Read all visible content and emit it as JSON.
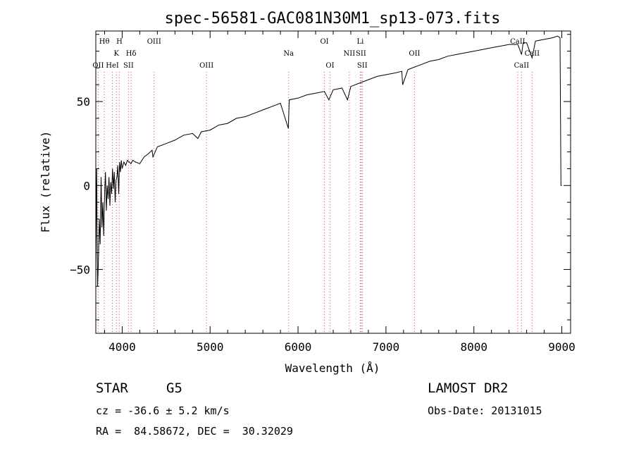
{
  "chart_data": {
    "type": "line",
    "title": "spec-56581-GAC081N30M1_sp13-073.fits",
    "xlabel": "Wavelength (Å)",
    "ylabel": "Flux (relative)",
    "xlim": [
      3700,
      9100
    ],
    "ylim": [
      -88,
      92
    ],
    "x_ticks": [
      "4000",
      "5000",
      "6000",
      "7000",
      "8000",
      "9000"
    ],
    "y_ticks": [
      "50",
      "0",
      "−50"
    ],
    "grid": false,
    "series": [
      {
        "x": [
          3700,
          3710,
          3720,
          3730,
          3740,
          3750,
          3760,
          3770,
          3780,
          3790,
          3800,
          3810,
          3820,
          3830,
          3840,
          3850,
          3860,
          3870,
          3880,
          3890,
          3900,
          3910,
          3920,
          3930,
          3940,
          3950,
          3960,
          3970,
          3980,
          3990,
          4000,
          4020,
          4040,
          4060,
          4080,
          4100,
          4120,
          4150,
          4200,
          4250,
          4300,
          4340,
          4350,
          4400,
          4500,
          4600,
          4700,
          4800,
          4861,
          4900,
          5000,
          5100,
          5200,
          5300,
          5400,
          5500,
          5600,
          5700,
          5800,
          5890,
          5900,
          6000,
          6100,
          6200,
          6300,
          6350,
          6400,
          6500,
          6563,
          6600,
          6700,
          6800,
          6900,
          7000,
          7100,
          7180,
          7190,
          7250,
          7300,
          7400,
          7500,
          7600,
          7700,
          7800,
          7900,
          8000,
          8100,
          8200,
          8300,
          8400,
          8500,
          8542,
          8560,
          8600,
          8662,
          8700,
          8800,
          8900,
          8950,
          8980,
          8990,
          8995,
          9000
        ],
        "y": [
          -50,
          10,
          -60,
          -45,
          -20,
          -35,
          5,
          -25,
          -10,
          -30,
          -5,
          8,
          -15,
          0,
          -8,
          5,
          -12,
          2,
          -5,
          10,
          -2,
          8,
          -10,
          3,
          5,
          12,
          -5,
          14,
          8,
          15,
          10,
          14,
          12,
          15,
          14,
          13,
          15,
          14,
          13,
          17,
          19,
          21,
          17,
          23,
          25,
          27,
          30,
          31,
          28,
          32,
          33,
          36,
          37,
          40,
          41,
          43,
          45,
          47,
          49,
          34,
          51,
          52,
          54,
          55,
          56,
          51,
          57,
          58,
          51,
          59,
          61,
          63,
          65,
          66,
          67,
          68,
          60,
          69,
          70,
          72,
          74,
          75,
          77,
          78,
          79,
          80,
          81,
          82,
          83,
          84,
          84,
          78,
          85,
          85,
          76,
          86,
          87,
          88,
          89,
          88,
          0,
          0,
          0
        ]
      }
    ],
    "line_annotations": [
      {
        "label": "Hθ",
        "x": 3797,
        "row": 0
      },
      {
        "label": "H",
        "x": 3968,
        "row": 0
      },
      {
        "label": "K",
        "x": 3934,
        "row": 1
      },
      {
        "label": "Hδ",
        "x": 4102,
        "row": 1
      },
      {
        "label": "OIII",
        "x": 4363,
        "row": 0
      },
      {
        "label": "OII",
        "x": 3727,
        "row": 2
      },
      {
        "label": "HeI",
        "x": 3889,
        "row": 2
      },
      {
        "label": "SII",
        "x": 4072,
        "row": 2
      },
      {
        "label": "OIII",
        "x": 4959,
        "row": 2
      },
      {
        "label": "Na",
        "x": 5893,
        "row": 1
      },
      {
        "label": "OI",
        "x": 6300,
        "row": 0
      },
      {
        "label": "OI",
        "x": 6364,
        "row": 2
      },
      {
        "label": "Li",
        "x": 6708,
        "row": 0
      },
      {
        "label": "NII",
        "x": 6583,
        "row": 1
      },
      {
        "label": "SII",
        "x": 6716,
        "row": 1
      },
      {
        "label": "SII",
        "x": 6731,
        "row": 2
      },
      {
        "label": "OII",
        "x": 7325,
        "row": 1
      },
      {
        "label": "CaII",
        "x": 8498,
        "row": 0
      },
      {
        "label": "CaII",
        "x": 8542,
        "row": 2
      },
      {
        "label": "CaII",
        "x": 8662,
        "row": 1
      }
    ],
    "annotation_lines": [
      3727,
      3797,
      3889,
      3934,
      3968,
      4072,
      4102,
      4363,
      4959,
      5893,
      6300,
      6364,
      6583,
      6708,
      6716,
      6731,
      7325,
      8498,
      8542,
      8662
    ]
  },
  "info": {
    "object_class": "STAR",
    "subclass": "G5",
    "survey": "LAMOST DR2",
    "redshift": "cz = -36.6 ± 5.2 km/s",
    "obs_date": "Obs-Date: 20131015",
    "coords": "RA =  84.58672, DEC =  30.32029"
  }
}
